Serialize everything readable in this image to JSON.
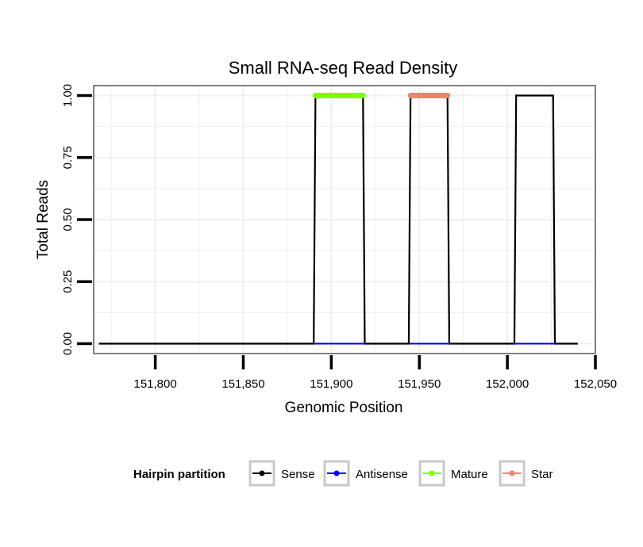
{
  "chart_data": {
    "type": "line",
    "title": "Small RNA-seq Read Density",
    "xlabel": "Genomic Position",
    "ylabel": "Total Reads",
    "xlim": [
      151765,
      152050
    ],
    "ylim": [
      -0.04,
      1.04
    ],
    "x_ticks": [
      151800,
      151850,
      151900,
      151950,
      152000,
      152050
    ],
    "x_tick_labels": [
      "151,800",
      "151,850",
      "151,900",
      "151,950",
      "152,000",
      "152,050"
    ],
    "y_ticks": [
      0,
      0.25,
      0.5,
      0.75,
      1.0
    ],
    "y_tick_labels": [
      "0.00",
      "0.25",
      "0.50",
      "0.75",
      "1.00"
    ],
    "grid": true,
    "legend": {
      "title": "Hairpin partition",
      "position": "bottom",
      "entries": [
        "Sense",
        "Antisense",
        "Mature",
        "Star"
      ]
    },
    "series": [
      {
        "name": "Sense",
        "color": "#000000",
        "x": [
          151768,
          151890,
          151891,
          151918,
          151919,
          151944,
          151945,
          151966,
          151967,
          152004,
          152005,
          152026,
          152027,
          152040
        ],
        "y": [
          0,
          0,
          1,
          1,
          0,
          0,
          1,
          1,
          0,
          0,
          1,
          1,
          0,
          0
        ]
      },
      {
        "name": "Antisense",
        "color": "#0000FF",
        "segments": [
          {
            "x": [
              151890,
              151919
            ],
            "y": [
              0,
              0
            ]
          },
          {
            "x": [
              151944,
              151967
            ],
            "y": [
              0,
              0
            ]
          },
          {
            "x": [
              152004,
              152027
            ],
            "y": [
              0,
              0
            ]
          }
        ]
      },
      {
        "name": "Mature",
        "color": "#7FFF00",
        "segments": [
          {
            "x": [
              151891,
              151918
            ],
            "y": [
              1,
              1
            ]
          }
        ]
      },
      {
        "name": "Star",
        "color": "#F08070",
        "segments": [
          {
            "x": [
              151945,
              151966
            ],
            "y": [
              1,
              1
            ]
          }
        ]
      }
    ]
  }
}
